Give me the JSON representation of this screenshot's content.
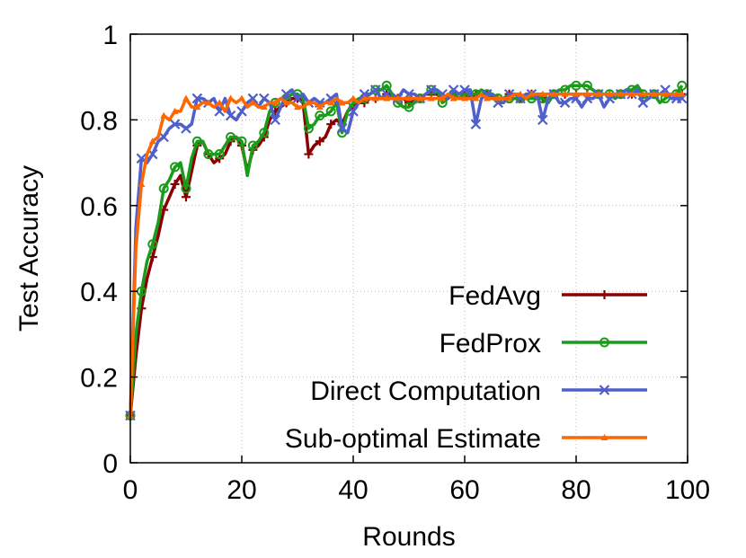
{
  "chart_data": {
    "type": "line",
    "title": "",
    "xlabel": "Rounds",
    "ylabel": "Test Accuracy",
    "xlim": [
      0,
      100
    ],
    "ylim": [
      0,
      1
    ],
    "xticks": [
      "0",
      "20",
      "40",
      "60",
      "80",
      "100"
    ],
    "yticks": [
      "0",
      "0.2",
      "0.4",
      "0.6",
      "0.8",
      "1"
    ],
    "grid": true,
    "legend_position": "bottom-right",
    "series": [
      {
        "name": "FedAvg",
        "color": "#8b0000",
        "marker": "plus",
        "x": [
          0,
          1,
          2,
          3,
          4,
          5,
          6,
          7,
          8,
          9,
          10,
          11,
          12,
          13,
          14,
          15,
          16,
          17,
          18,
          19,
          20,
          21,
          22,
          23,
          24,
          25,
          26,
          27,
          28,
          29,
          30,
          31,
          32,
          33,
          34,
          35,
          36,
          37,
          38,
          39,
          40,
          41,
          42,
          43,
          44,
          45,
          46,
          47,
          48,
          49,
          50,
          51,
          52,
          53,
          54,
          55,
          56,
          57,
          58,
          59,
          60,
          61,
          62,
          63,
          64,
          65,
          66,
          67,
          68,
          69,
          70,
          71,
          72,
          73,
          74,
          75,
          76,
          77,
          78,
          79,
          80,
          81,
          82,
          83,
          84,
          85,
          86,
          87,
          88,
          89,
          90,
          91,
          92,
          93,
          94,
          95,
          96,
          97,
          98,
          99
        ],
        "y": [
          0.11,
          0.25,
          0.36,
          0.43,
          0.48,
          0.53,
          0.59,
          0.62,
          0.65,
          0.67,
          0.62,
          0.68,
          0.74,
          0.75,
          0.72,
          0.7,
          0.71,
          0.72,
          0.75,
          0.76,
          0.74,
          0.68,
          0.73,
          0.74,
          0.76,
          0.8,
          0.82,
          0.83,
          0.84,
          0.85,
          0.85,
          0.84,
          0.72,
          0.74,
          0.75,
          0.76,
          0.79,
          0.8,
          0.79,
          0.82,
          0.83,
          0.84,
          0.84,
          0.85,
          0.85,
          0.85,
          0.86,
          0.86,
          0.85,
          0.85,
          0.84,
          0.85,
          0.85,
          0.86,
          0.86,
          0.86,
          0.85,
          0.85,
          0.86,
          0.86,
          0.86,
          0.85,
          0.86,
          0.86,
          0.86,
          0.85,
          0.85,
          0.85,
          0.86,
          0.86,
          0.85,
          0.85,
          0.86,
          0.86,
          0.85,
          0.85,
          0.86,
          0.86,
          0.86,
          0.86,
          0.86,
          0.86,
          0.86,
          0.86,
          0.86,
          0.86,
          0.86,
          0.86,
          0.86,
          0.86,
          0.86,
          0.86,
          0.86,
          0.86,
          0.86,
          0.86,
          0.86,
          0.86,
          0.86,
          0.86
        ]
      },
      {
        "name": "FedProx",
        "color": "#1a9b1a",
        "marker": "circle",
        "x": [
          0,
          1,
          2,
          3,
          4,
          5,
          6,
          7,
          8,
          9,
          10,
          11,
          12,
          13,
          14,
          15,
          16,
          17,
          18,
          19,
          20,
          21,
          22,
          23,
          24,
          25,
          26,
          27,
          28,
          29,
          30,
          31,
          32,
          33,
          34,
          35,
          36,
          37,
          38,
          39,
          40,
          41,
          42,
          43,
          44,
          45,
          46,
          47,
          48,
          49,
          50,
          51,
          52,
          53,
          54,
          55,
          56,
          57,
          58,
          59,
          60,
          61,
          62,
          63,
          64,
          65,
          66,
          67,
          68,
          69,
          70,
          71,
          72,
          73,
          74,
          75,
          76,
          77,
          78,
          79,
          80,
          81,
          82,
          83,
          84,
          85,
          86,
          87,
          88,
          89,
          90,
          91,
          92,
          93,
          94,
          95,
          96,
          97,
          98,
          99
        ],
        "y": [
          0.11,
          0.3,
          0.4,
          0.47,
          0.51,
          0.56,
          0.64,
          0.66,
          0.69,
          0.7,
          0.64,
          0.71,
          0.75,
          0.75,
          0.72,
          0.72,
          0.72,
          0.74,
          0.76,
          0.76,
          0.75,
          0.67,
          0.74,
          0.75,
          0.77,
          0.82,
          0.84,
          0.85,
          0.85,
          0.86,
          0.86,
          0.85,
          0.78,
          0.79,
          0.81,
          0.81,
          0.82,
          0.84,
          0.77,
          0.82,
          0.84,
          0.85,
          0.85,
          0.86,
          0.87,
          0.87,
          0.88,
          0.86,
          0.84,
          0.83,
          0.83,
          0.84,
          0.85,
          0.86,
          0.87,
          0.87,
          0.84,
          0.85,
          0.86,
          0.85,
          0.86,
          0.86,
          0.86,
          0.87,
          0.86,
          0.86,
          0.85,
          0.85,
          0.85,
          0.85,
          0.85,
          0.85,
          0.85,
          0.85,
          0.85,
          0.84,
          0.86,
          0.87,
          0.87,
          0.88,
          0.88,
          0.88,
          0.88,
          0.87,
          0.86,
          0.86,
          0.86,
          0.85,
          0.86,
          0.87,
          0.87,
          0.88,
          0.86,
          0.85,
          0.86,
          0.84,
          0.85,
          0.86,
          0.86,
          0.88
        ]
      },
      {
        "name": "Direct Computation",
        "color": "#4f5fcc",
        "marker": "cross",
        "x": [
          0,
          1,
          2,
          3,
          4,
          5,
          6,
          7,
          8,
          9,
          10,
          11,
          12,
          13,
          14,
          15,
          16,
          17,
          18,
          19,
          20,
          21,
          22,
          23,
          24,
          25,
          26,
          27,
          28,
          29,
          30,
          31,
          32,
          33,
          34,
          35,
          36,
          37,
          38,
          39,
          40,
          41,
          42,
          43,
          44,
          45,
          46,
          47,
          48,
          49,
          50,
          51,
          52,
          53,
          54,
          55,
          56,
          57,
          58,
          59,
          60,
          61,
          62,
          63,
          64,
          65,
          66,
          67,
          68,
          69,
          70,
          71,
          72,
          73,
          74,
          75,
          76,
          77,
          78,
          79,
          80,
          81,
          82,
          83,
          84,
          85,
          86,
          87,
          88,
          89,
          90,
          91,
          92,
          93,
          94,
          95,
          96,
          97,
          98,
          99
        ],
        "y": [
          0.11,
          0.55,
          0.71,
          0.7,
          0.72,
          0.75,
          0.76,
          0.78,
          0.79,
          0.79,
          0.78,
          0.79,
          0.85,
          0.85,
          0.84,
          0.85,
          0.82,
          0.85,
          0.81,
          0.8,
          0.82,
          0.84,
          0.85,
          0.83,
          0.85,
          0.84,
          0.8,
          0.83,
          0.86,
          0.87,
          0.85,
          0.86,
          0.84,
          0.85,
          0.84,
          0.84,
          0.85,
          0.86,
          0.78,
          0.77,
          0.82,
          0.84,
          0.86,
          0.86,
          0.87,
          0.85,
          0.86,
          0.85,
          0.85,
          0.87,
          0.86,
          0.86,
          0.85,
          0.86,
          0.87,
          0.87,
          0.86,
          0.85,
          0.87,
          0.86,
          0.87,
          0.87,
          0.79,
          0.85,
          0.86,
          0.86,
          0.84,
          0.84,
          0.86,
          0.86,
          0.85,
          0.86,
          0.86,
          0.86,
          0.8,
          0.85,
          0.86,
          0.84,
          0.84,
          0.85,
          0.85,
          0.83,
          0.85,
          0.85,
          0.86,
          0.83,
          0.85,
          0.86,
          0.86,
          0.87,
          0.86,
          0.87,
          0.84,
          0.85,
          0.86,
          0.86,
          0.87,
          0.85,
          0.85,
          0.85
        ]
      },
      {
        "name": "Sub-optimal Estimate",
        "color": "#ff6600",
        "marker": "triangle",
        "x": [
          0,
          1,
          2,
          3,
          4,
          5,
          6,
          7,
          8,
          9,
          10,
          11,
          12,
          13,
          14,
          15,
          16,
          17,
          18,
          19,
          20,
          21,
          22,
          23,
          24,
          25,
          26,
          27,
          28,
          29,
          30,
          31,
          32,
          33,
          34,
          35,
          36,
          37,
          38,
          39,
          40,
          41,
          42,
          43,
          44,
          45,
          46,
          47,
          48,
          49,
          50,
          51,
          52,
          53,
          54,
          55,
          56,
          57,
          58,
          59,
          60,
          61,
          62,
          63,
          64,
          65,
          66,
          67,
          68,
          69,
          70,
          71,
          72,
          73,
          74,
          75,
          76,
          77,
          78,
          79,
          80,
          81,
          82,
          83,
          84,
          85,
          86,
          87,
          88,
          89,
          90,
          91,
          92,
          93,
          94,
          95,
          96,
          97,
          98,
          99
        ],
        "y": [
          0.11,
          0.5,
          0.65,
          0.72,
          0.75,
          0.76,
          0.81,
          0.8,
          0.82,
          0.82,
          0.85,
          0.83,
          0.83,
          0.84,
          0.84,
          0.83,
          0.84,
          0.82,
          0.85,
          0.84,
          0.85,
          0.83,
          0.84,
          0.83,
          0.83,
          0.84,
          0.84,
          0.85,
          0.84,
          0.84,
          0.83,
          0.83,
          0.84,
          0.84,
          0.83,
          0.84,
          0.84,
          0.85,
          0.84,
          0.84,
          0.85,
          0.84,
          0.85,
          0.85,
          0.85,
          0.85,
          0.85,
          0.85,
          0.85,
          0.85,
          0.85,
          0.85,
          0.85,
          0.85,
          0.85,
          0.85,
          0.85,
          0.86,
          0.85,
          0.85,
          0.85,
          0.85,
          0.85,
          0.86,
          0.85,
          0.85,
          0.85,
          0.85,
          0.85,
          0.86,
          0.86,
          0.85,
          0.86,
          0.86,
          0.86,
          0.86,
          0.86,
          0.86,
          0.86,
          0.86,
          0.86,
          0.86,
          0.86,
          0.86,
          0.86,
          0.86,
          0.86,
          0.86,
          0.86,
          0.86,
          0.86,
          0.86,
          0.86,
          0.86,
          0.86,
          0.86,
          0.86,
          0.86,
          0.86,
          0.86
        ]
      }
    ]
  }
}
